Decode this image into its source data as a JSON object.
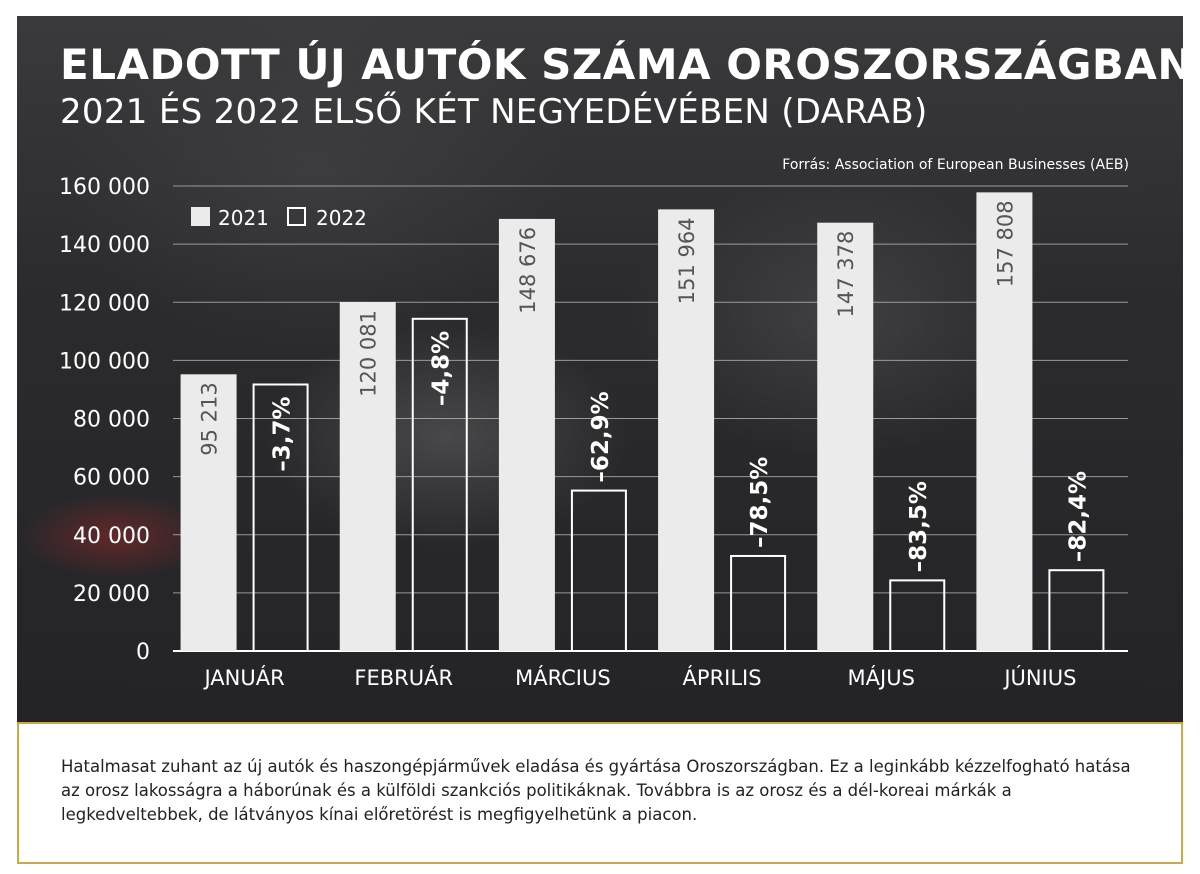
{
  "header": {
    "title": "ELADOTT ÚJ AUTÓK SZÁMA OROSZORSZÁGBAN",
    "subtitle": "2021 ÉS 2022 ELSŐ KÉT NEGYEDÉVÉBEN (DARAB)",
    "source": "Forrás: Association of European Businesses (AEB)"
  },
  "caption": "Hatalmasat zuhant az új autók és haszongépjárművek eladása és gyártása Oroszországban. Ez a leginkább kézzelfogható hatása az orosz lakosságra a háborúnak és a külföldi szankciós politikáknak. Továbbra is az orosz és a dél-koreai márkák a legkedveltebbek, de látványos kínai előretörést is megfigyelhetünk a piacon.",
  "colors": {
    "bar_2021": "#ebebeb",
    "bar_2022_outline": "#ffffff",
    "panel_bg": "#2b2b2e",
    "caption_border": "#c9a94a"
  },
  "chart_data": {
    "type": "bar",
    "categories": [
      "JANUÁR",
      "FEBRUÁR",
      "MÁRCIUS",
      "ÁPRILIS",
      "MÁJUS",
      "JÚNIUS"
    ],
    "series": [
      {
        "name": "2021",
        "values": [
          95213,
          120081,
          148676,
          151964,
          147378,
          157808
        ],
        "labels": [
          "95 213",
          "120 081",
          "148 676",
          "151 964",
          "147 378",
          "157 808"
        ]
      },
      {
        "name": "2022",
        "values": [
          91700,
          114300,
          55200,
          32700,
          24300,
          27800
        ],
        "labels": [
          "–3,7%",
          "–4,8%",
          "–62,9%",
          "–78,5%",
          "–83,5%",
          "–82,4%"
        ]
      }
    ],
    "ylim": [
      0,
      160000
    ],
    "yticks": [
      0,
      20000,
      40000,
      60000,
      80000,
      100000,
      120000,
      140000,
      160000
    ],
    "ytick_labels": [
      "0",
      "20 000",
      "40 000",
      "60 000",
      "80 000",
      "100 000",
      "120 000",
      "140 000",
      "160 000"
    ],
    "grid": true,
    "legend_position": "top-left"
  }
}
